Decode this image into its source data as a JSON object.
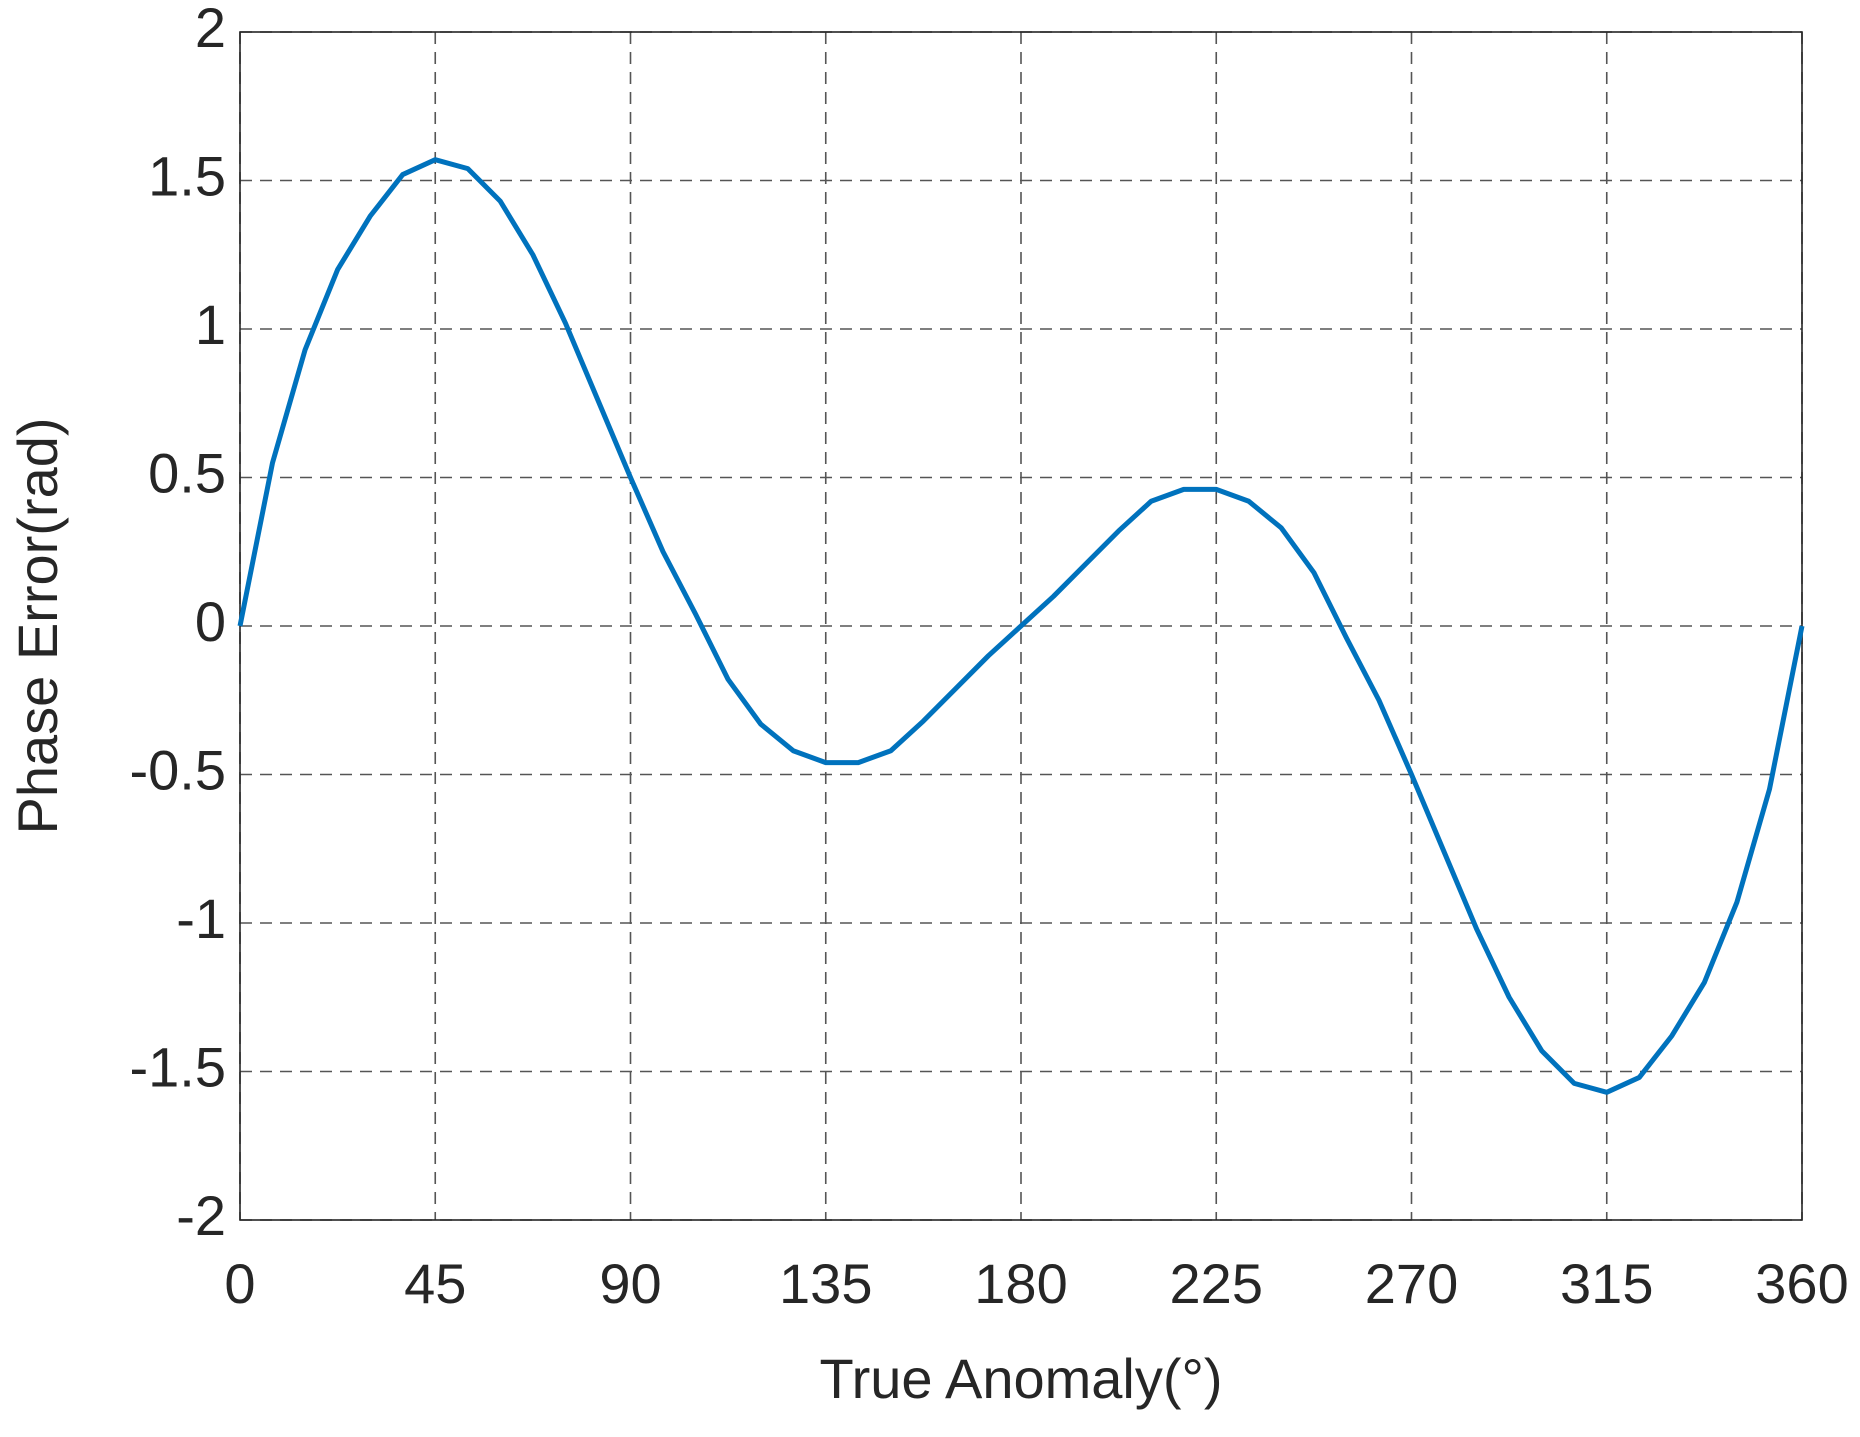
{
  "chart_data": {
    "type": "line",
    "x_label": "True Anomaly(°)",
    "y_label": "Phase Error(rad)",
    "x": [
      0,
      7.5,
      15,
      22.5,
      30,
      37.5,
      45,
      52.5,
      60,
      67.5,
      75,
      82.5,
      90,
      97.5,
      105,
      112.5,
      120,
      127.5,
      135,
      142.5,
      150,
      157.5,
      165,
      172.5,
      180,
      187.5,
      195,
      202.5,
      210,
      217.5,
      225,
      232.5,
      240,
      247.5,
      255,
      262.5,
      270,
      277.5,
      285,
      292.5,
      300,
      307.5,
      315,
      322.5,
      330,
      337.5,
      345,
      352.5,
      360
    ],
    "series": [
      {
        "color": "#0072bd",
        "values": [
          0,
          0.55,
          0.93,
          1.2,
          1.38,
          1.52,
          1.57,
          1.54,
          1.43,
          1.25,
          1.02,
          0.76,
          0.5,
          0.25,
          0.04,
          -0.18,
          -0.33,
          -0.42,
          -0.46,
          -0.46,
          -0.42,
          -0.32,
          -0.21,
          -0.1,
          0,
          0.1,
          0.21,
          0.32,
          0.42,
          0.46,
          0.46,
          0.42,
          0.33,
          0.18,
          -0.04,
          -0.25,
          -0.5,
          -0.76,
          -1.02,
          -1.25,
          -1.43,
          -1.54,
          -1.57,
          -1.52,
          -1.38,
          -1.2,
          -0.93,
          -0.55,
          0
        ]
      }
    ],
    "xlim": [
      0,
      360
    ],
    "xticks": [
      0,
      45,
      90,
      135,
      180,
      225,
      270,
      315,
      360
    ],
    "ylim": [
      -2,
      2
    ],
    "yticks": [
      -2,
      -1.5,
      -1,
      -0.5,
      0,
      0.5,
      1,
      1.5,
      2
    ],
    "grid": true
  }
}
